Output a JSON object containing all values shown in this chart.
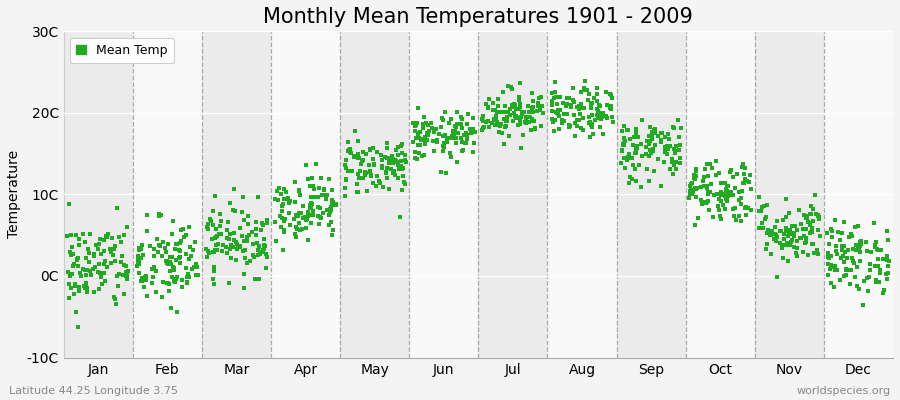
{
  "title": "Monthly Mean Temperatures 1901 - 2009",
  "ylabel": "Temperature",
  "bottom_left_text": "Latitude 44.25 Longitude 3.75",
  "bottom_right_text": "worldspecies.org",
  "ylim": [
    -10,
    30
  ],
  "yticks": [
    -10,
    0,
    10,
    20,
    30
  ],
  "ytick_labels": [
    "-10C",
    "0C",
    "10C",
    "20C",
    "30C"
  ],
  "months": [
    "Jan",
    "Feb",
    "Mar",
    "Apr",
    "May",
    "Jun",
    "Jul",
    "Aug",
    "Sep",
    "Oct",
    "Nov",
    "Dec"
  ],
  "dot_color": "#22aa22",
  "dot_size": 5,
  "background_color": "#f4f4f4",
  "plot_bg_color": "#f4f4f4",
  "band_colors": [
    "#ebebeb",
    "#f9f9f9"
  ],
  "dashed_line_color": "#888888",
  "n_years": 109,
  "month_means": [
    1.2,
    1.5,
    4.5,
    8.5,
    13.5,
    17.0,
    20.0,
    20.0,
    15.5,
    10.5,
    5.5,
    2.2
  ],
  "month_stds": [
    2.8,
    2.8,
    2.2,
    2.0,
    1.8,
    1.5,
    1.5,
    1.5,
    2.0,
    2.0,
    2.0,
    2.2
  ],
  "random_seed": 42,
  "title_fontsize": 15,
  "label_fontsize": 10,
  "tick_fontsize": 10,
  "legend_fontsize": 9
}
